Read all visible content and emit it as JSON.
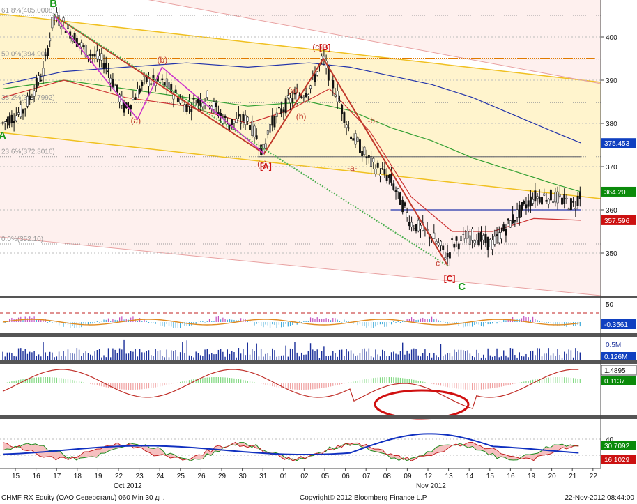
{
  "footer": {
    "left": "CHMF RX Equity (ОАО Северсталь) 060 Min 30 дн.",
    "center": "Copyright© 2012 Bloomberg Finance L.P.",
    "right": "22-Nov-2012 08:44:00"
  },
  "colors": {
    "up": "#0a8a0a",
    "down": "#cc1111",
    "wave_red": "#c0392b",
    "wave_magenta": "#cc33cc",
    "channel_fill": "#fff2c4",
    "ma_blue": "#2233aa",
    "ma_green": "#33a033",
    "ma_red": "#cc3333",
    "axis_text": "#111111"
  },
  "chart_data": [
    {
      "type": "candlestick",
      "panel": "price",
      "ylim": [
        340,
        406
      ],
      "y_ticks": [
        350,
        360,
        370,
        380,
        390,
        400
      ],
      "x_tick_labels": [
        "15",
        "16",
        "17",
        "18",
        "19",
        "22",
        "23",
        "24",
        "25",
        "26",
        "29",
        "30",
        "31",
        "01",
        "02",
        "05",
        "06",
        "07",
        "08",
        "09",
        "12",
        "13",
        "14",
        "15",
        "16",
        "19",
        "20",
        "21",
        "22"
      ],
      "month_labels": [
        "Oct 2012",
        "Nov 2012"
      ],
      "fib_levels": [
        {
          "label": "61.8%(405.0008)",
          "value": 405.0
        },
        {
          "label": "50.0%(394.90)",
          "value": 394.9
        },
        {
          "label": "38.2%(384.7992)",
          "value": 384.8
        },
        {
          "label": "23.6%(372.3016)",
          "value": 372.3
        },
        {
          "label": "0.0%(352.10)",
          "value": 352.1
        }
      ],
      "price_path": [
        [
          0,
          380
        ],
        [
          1,
          383
        ],
        [
          2,
          392
        ],
        [
          2.5,
          405
        ],
        [
          3,
          403
        ],
        [
          4,
          397
        ],
        [
          5,
          394
        ],
        [
          6,
          383
        ],
        [
          7,
          390
        ],
        [
          8,
          389
        ],
        [
          9,
          384
        ],
        [
          10,
          386
        ],
        [
          11,
          380
        ],
        [
          12,
          381
        ],
        [
          12.8,
          373
        ],
        [
          13,
          379
        ],
        [
          14,
          385
        ],
        [
          15,
          388
        ],
        [
          15.7,
          395
        ],
        [
          16,
          391
        ],
        [
          16.5,
          385
        ],
        [
          17,
          378
        ],
        [
          18,
          371
        ],
        [
          19,
          367
        ],
        [
          20,
          357
        ],
        [
          21,
          354
        ],
        [
          21.8,
          349
        ],
        [
          22,
          352
        ],
        [
          23,
          354
        ],
        [
          24,
          352
        ],
        [
          25,
          358
        ],
        [
          26,
          363
        ],
        [
          27,
          363
        ],
        [
          28,
          361
        ],
        [
          28.3,
          364
        ]
      ],
      "waves": [
        {
          "name": "A",
          "label": "A",
          "x": 0,
          "value": 380
        },
        {
          "name": "B",
          "label": "B",
          "x": 2.5,
          "value": 405
        },
        {
          "name": "[A]",
          "label": "[A]",
          "x": 12.8,
          "value": 373
        },
        {
          "name": "[B]",
          "label": "[B]",
          "x": 15.7,
          "value": 395
        },
        {
          "name": "[C]",
          "label": "[C]",
          "x": 21.8,
          "value": 347
        },
        {
          "name": "C",
          "label": "C",
          "x": 22.5,
          "value": 345
        }
      ],
      "minor_labels": [
        {
          "label": "(a)",
          "x": 6.5,
          "value": 380
        },
        {
          "label": "(b)",
          "x": 7.8,
          "value": 394
        },
        {
          "label": "(c)",
          "x": 12.7,
          "value": 370
        },
        {
          "label": "(a)",
          "x": 14.2,
          "value": 387
        },
        {
          "label": "(b)",
          "x": 14.6,
          "value": 381
        },
        {
          "label": "(c)",
          "x": 15.4,
          "value": 397
        },
        {
          "label": "-a-",
          "x": 17.1,
          "value": 369
        },
        {
          "label": "-b-",
          "x": 18.1,
          "value": 380
        },
        {
          "label": "-c-",
          "x": 21.3,
          "value": 347
        }
      ],
      "moving_averages": [
        {
          "name": "ma_blue",
          "points": [
            [
              0,
              389
            ],
            [
              3,
              392
            ],
            [
              6,
              393
            ],
            [
              9,
              394
            ],
            [
              12,
              393
            ],
            [
              15,
              394
            ],
            [
              17,
              393
            ],
            [
              19,
              391
            ],
            [
              21,
              389
            ],
            [
              23,
              386
            ],
            [
              25,
              382
            ],
            [
              27,
              378
            ],
            [
              28.3,
              375.5
            ]
          ]
        },
        {
          "name": "ma_green",
          "points": [
            [
              0,
              388
            ],
            [
              3,
              390
            ],
            [
              6,
              388
            ],
            [
              9,
              386
            ],
            [
              12,
              384
            ],
            [
              15,
              385
            ],
            [
              17,
              383
            ],
            [
              19,
              379
            ],
            [
              21,
              376
            ],
            [
              23,
              372
            ],
            [
              25,
              369
            ],
            [
              27,
              366
            ],
            [
              28.3,
              364.2
            ]
          ]
        },
        {
          "name": "ma_red",
          "points": [
            [
              0,
              386
            ],
            [
              3,
              390
            ],
            [
              6,
              386
            ],
            [
              9,
              384
            ],
            [
              12,
              380
            ],
            [
              14,
              383
            ],
            [
              16,
              388
            ],
            [
              18,
              378
            ],
            [
              20,
              363
            ],
            [
              22,
              355
            ],
            [
              24,
              355
            ],
            [
              26,
              358
            ],
            [
              28.3,
              357.6
            ]
          ]
        }
      ],
      "horizontal_lines": [
        {
          "value": 372.3,
          "from_x": 12.5,
          "to_x": 28.3,
          "color": "#777777"
        },
        {
          "value": 360,
          "from_x": 19,
          "to_x": 28.3,
          "color": "#2233aa"
        },
        {
          "value": 395,
          "from_x": 0,
          "to_x": 29,
          "color": "#e07a00"
        }
      ],
      "right_labels": [
        {
          "value": "375.453",
          "bg": "#1040c0"
        },
        {
          "value": "364.20",
          "bg": "#0a8a0a"
        },
        {
          "value": "357.596",
          "bg": "#cc1111"
        }
      ]
    },
    {
      "type": "bar",
      "panel": "oscillator",
      "y_ticks": [
        50
      ],
      "right_labels": [
        {
          "value": "-0.3561",
          "bg": "#1040c0"
        }
      ]
    },
    {
      "type": "bar",
      "panel": "volume",
      "y_ticks": [
        "0.5M"
      ],
      "right_labels": [
        {
          "value": "0.126M",
          "bg": "#1040c0"
        }
      ]
    },
    {
      "type": "area",
      "panel": "macd",
      "right_labels": [
        {
          "value": "1.4895",
          "bg": "#ffffff"
        },
        {
          "value": "0.1137",
          "bg": "#0a8a0a"
        }
      ]
    },
    {
      "type": "area",
      "panel": "dmi",
      "y_ticks": [
        40
      ],
      "right_labels": [
        {
          "value": "30.7092",
          "bg": "#0a8a0a"
        },
        {
          "value": "16.1029",
          "bg": "#cc1111"
        }
      ]
    }
  ]
}
